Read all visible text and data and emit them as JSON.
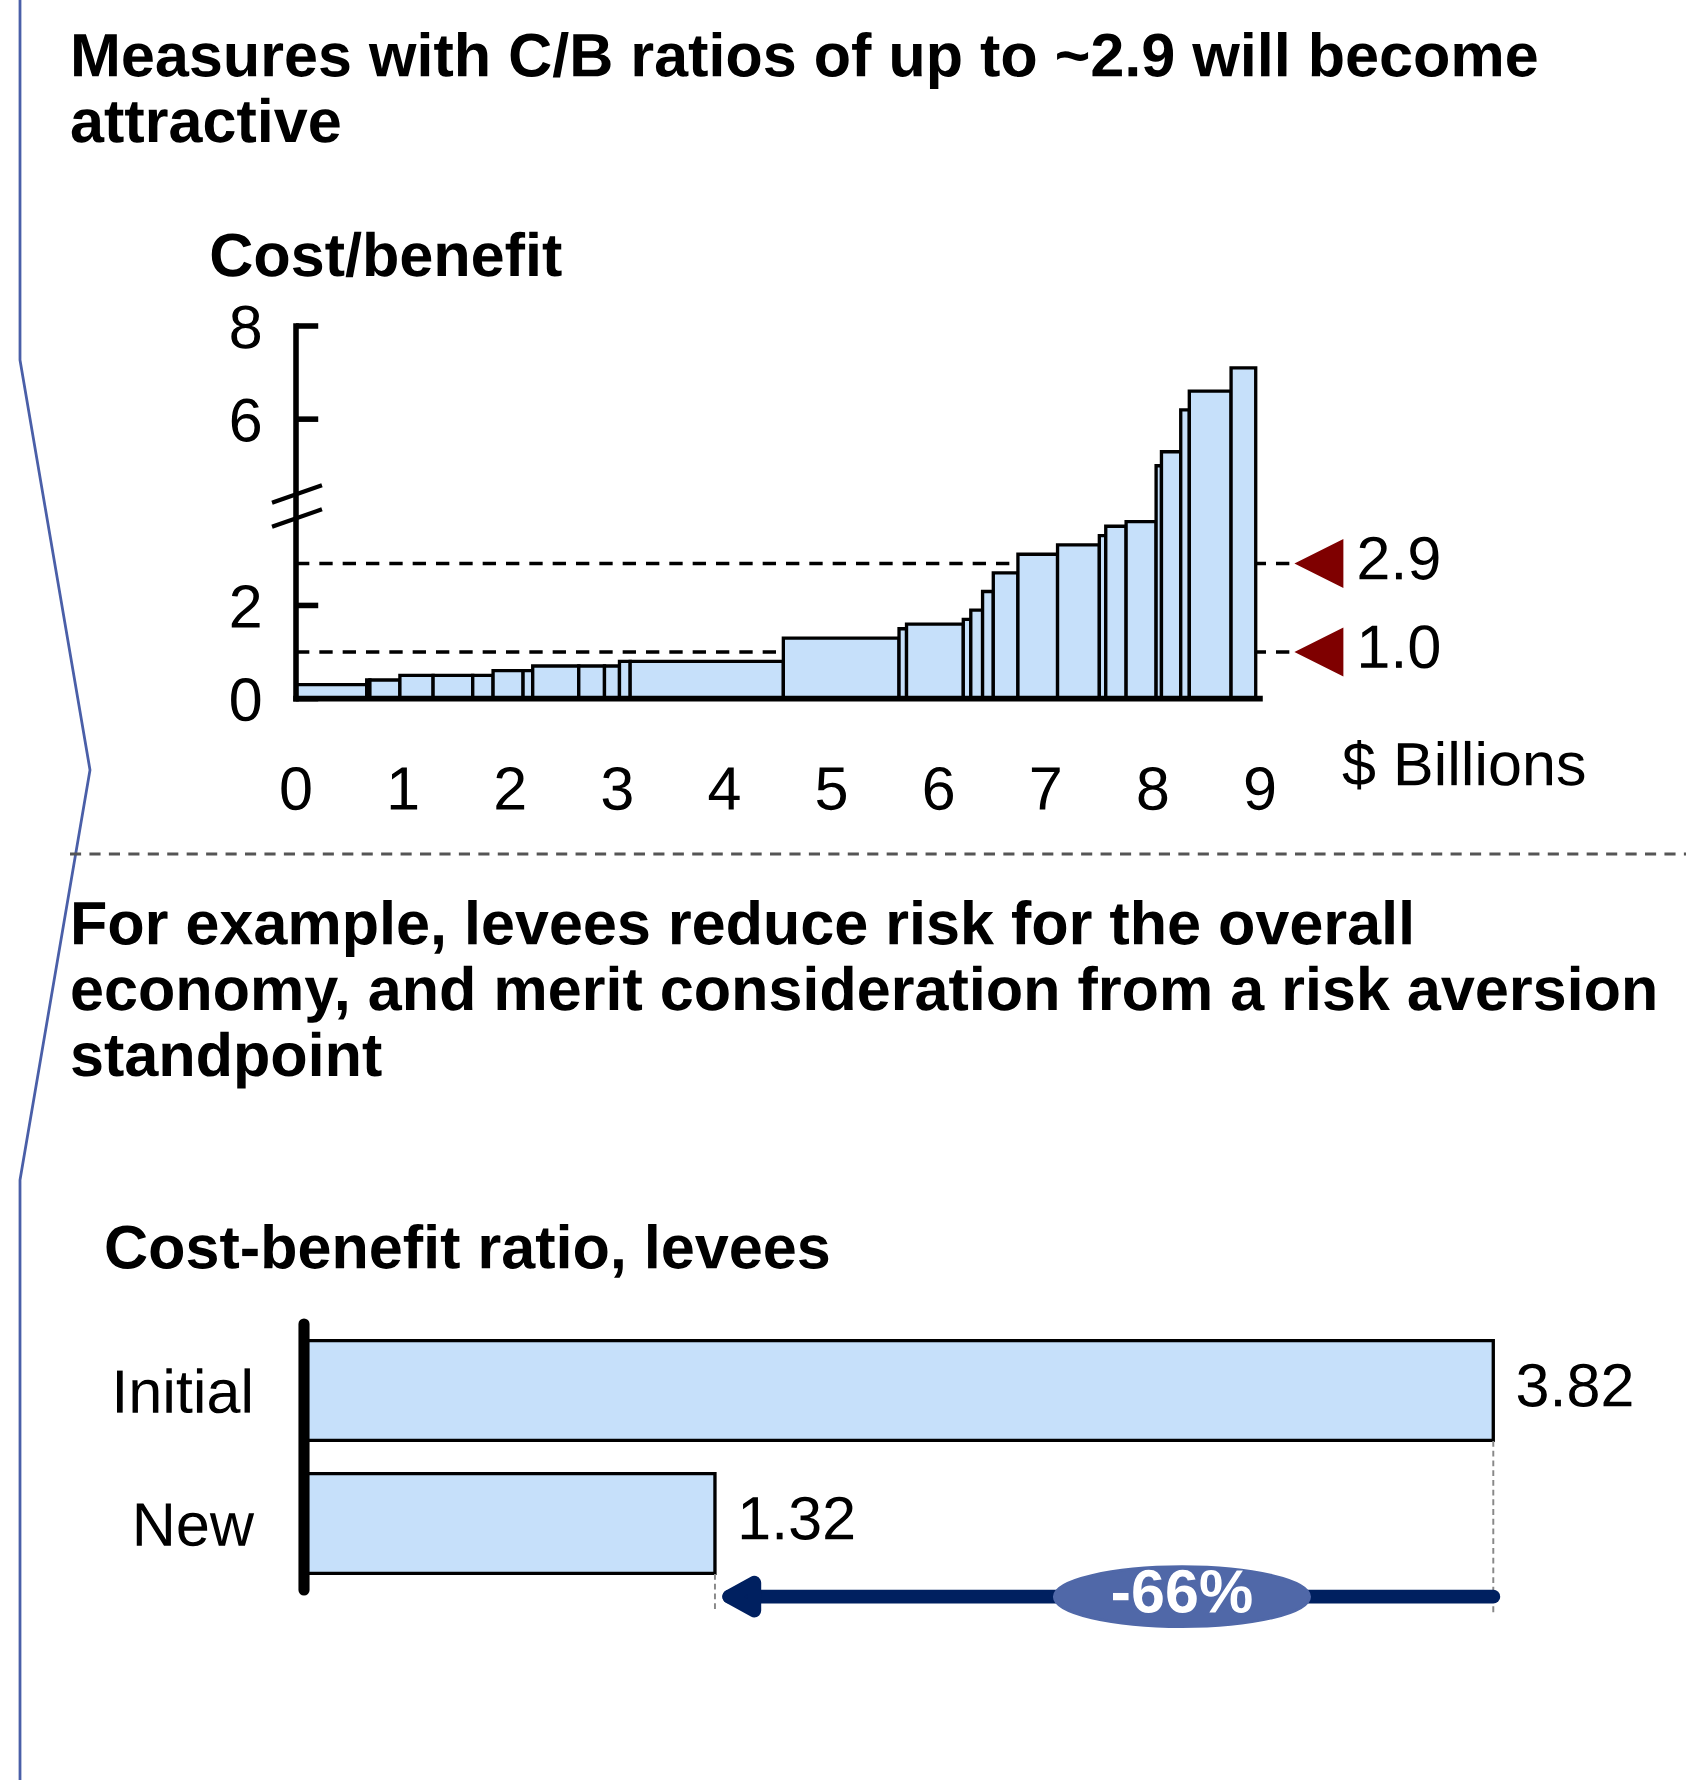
{
  "chart_data": [
    {
      "type": "histogram",
      "title": "Measures with C/B ratios of up to ~2.9 will become attractive",
      "ylabel": "Cost/benefit",
      "xlabel": "$ Billions",
      "bins": [
        0,
        0.66,
        0.69,
        0.97,
        1.28,
        1.65,
        1.84,
        2.12,
        2.21,
        2.64,
        2.88,
        3.02,
        3.12,
        4.55,
        5.63,
        5.7,
        6.23,
        6.3,
        6.41,
        6.51,
        6.74,
        7.11,
        7.5,
        7.56,
        7.75,
        8.03,
        8.08,
        8.26,
        8.34,
        8.73,
        8.96
      ],
      "values": [
        0.3,
        0.4,
        0.4,
        0.5,
        0.5,
        0.5,
        0.6,
        0.6,
        0.7,
        0.7,
        0.7,
        0.8,
        0.8,
        1.3,
        1.5,
        1.6,
        1.7,
        1.9,
        2.3,
        2.7,
        3.1,
        3.3,
        3.5,
        3.7,
        3.8,
        5.0,
        5.3,
        6.2,
        6.6,
        7.1
      ],
      "color": "#c6e0fa",
      "xlim": [
        0,
        9
      ],
      "xticks": [
        0,
        1,
        2,
        3,
        4,
        5,
        6,
        7,
        8,
        9
      ],
      "ylim": [
        0,
        8
      ],
      "yticks": [
        0,
        2,
        6,
        8
      ],
      "ref_lines": [
        {
          "axis": "y",
          "value": 2.9,
          "label": "2.9",
          "color": "#000000",
          "line_style": "dashed"
        },
        {
          "axis": "y",
          "value": 1.0,
          "label": "1.0",
          "color": "#000000",
          "line_style": "dashed"
        }
      ],
      "grid": false,
      "legend": false
    },
    {
      "type": "bar",
      "orientation": "horizontal",
      "title": "For example, levees reduce risk for the overall economy, and merit consideration from a risk aversion standpoint",
      "subtitle": "Cost-benefit ratio, levees",
      "categories": [
        "Initial",
        "New"
      ],
      "values": [
        3.82,
        1.32
      ],
      "color": "#c6e0fa",
      "data_labels": true,
      "annotations": [
        "-66%"
      ],
      "tick_labels": "y",
      "grid": false,
      "legend": false
    }
  ]
}
